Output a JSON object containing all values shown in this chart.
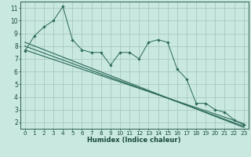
{
  "xlabel": "Humidex (Indice chaleur)",
  "xlim": [
    -0.5,
    23.5
  ],
  "ylim": [
    1.5,
    11.5
  ],
  "yticks": [
    2,
    3,
    4,
    5,
    6,
    7,
    8,
    9,
    10,
    11
  ],
  "xticks": [
    0,
    1,
    2,
    3,
    4,
    5,
    6,
    7,
    8,
    9,
    10,
    11,
    12,
    13,
    14,
    15,
    16,
    17,
    18,
    19,
    20,
    21,
    22,
    23
  ],
  "bg_color": "#c8e8e0",
  "grid_color": "#a8c8c0",
  "line_color": "#2a6858",
  "series": [
    {
      "x": [
        0,
        1,
        2,
        3,
        4,
        5,
        6,
        7,
        8,
        9,
        10,
        11,
        12,
        13,
        14,
        15,
        16,
        17,
        18,
        19,
        20,
        21,
        22,
        23
      ],
      "y": [
        7.6,
        8.8,
        9.5,
        10.0,
        11.1,
        8.5,
        7.7,
        7.5,
        7.5,
        6.5,
        7.5,
        7.5,
        7.0,
        8.3,
        8.5,
        8.3,
        6.2,
        5.4,
        3.5,
        3.5,
        3.0,
        2.8,
        2.2,
        1.8
      ],
      "markers": true
    },
    {
      "x": [
        0,
        1,
        2,
        3,
        4,
        5,
        6,
        7,
        8,
        9,
        10,
        11,
        12,
        13,
        14,
        15,
        16,
        17,
        18,
        19,
        20,
        21,
        22,
        23
      ],
      "y": [
        7.6,
        8.8,
        9.5,
        10.0,
        11.1,
        8.5,
        7.7,
        7.5,
        7.5,
        6.5,
        7.5,
        7.5,
        7.0,
        8.3,
        8.5,
        8.3,
        6.2,
        5.4,
        3.5,
        3.5,
        3.0,
        2.8,
        2.2,
        1.8
      ],
      "markers": false
    },
    {
      "x": [
        0,
        23
      ],
      "y": [
        8.3,
        1.6
      ],
      "markers": false
    },
    {
      "x": [
        0,
        23
      ],
      "y": [
        8.0,
        1.7
      ],
      "markers": false
    },
    {
      "x": [
        0,
        23
      ],
      "y": [
        7.7,
        1.9
      ],
      "markers": false
    }
  ],
  "tick_fontsize": 5.2,
  "xlabel_fontsize": 6.0,
  "tick_color": "#1a4a3a",
  "spine_color": "#1a4a3a"
}
